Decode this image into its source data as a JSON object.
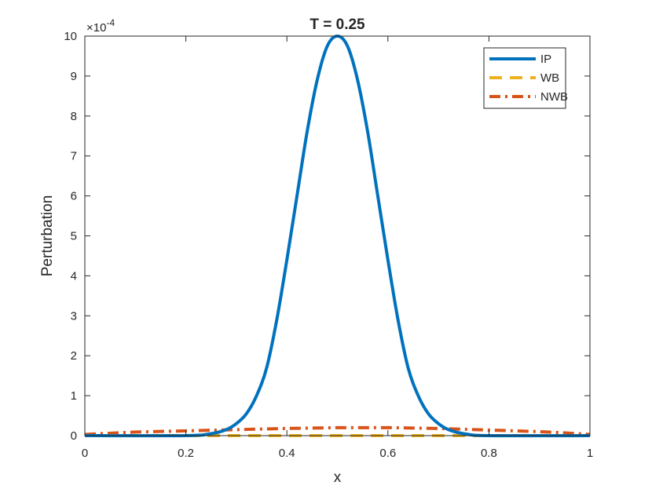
{
  "chart_data": {
    "type": "line",
    "title": "T = 0.25",
    "xlabel": "x",
    "ylabel": "Perturbation",
    "y_exponent_label": "×10",
    "y_exponent_power": "-4",
    "y_scale": 0.0001,
    "xlim": [
      0,
      1
    ],
    "ylim": [
      0,
      10
    ],
    "xticks": [
      0,
      0.2,
      0.4,
      0.6,
      0.8,
      1
    ],
    "xtick_labels": [
      "0",
      "0.2",
      "0.4",
      "0.6",
      "0.8",
      "1"
    ],
    "yticks": [
      0,
      1,
      2,
      3,
      4,
      5,
      6,
      7,
      8,
      9,
      10
    ],
    "ytick_labels": [
      "0",
      "1",
      "2",
      "3",
      "4",
      "5",
      "6",
      "7",
      "8",
      "9",
      "10"
    ],
    "grid": false,
    "legend_position": "top-right",
    "series": [
      {
        "name": "IP",
        "color": "#0072BD",
        "style": "solid",
        "x": [
          0,
          0.2,
          0.25,
          0.28,
          0.3,
          0.32,
          0.34,
          0.36,
          0.38,
          0.4,
          0.42,
          0.44,
          0.46,
          0.48,
          0.5,
          0.52,
          0.54,
          0.56,
          0.58,
          0.6,
          0.62,
          0.64,
          0.66,
          0.68,
          0.7,
          0.72,
          0.75,
          0.8,
          1
        ],
        "y": [
          0,
          0,
          0.05,
          0.15,
          0.3,
          0.55,
          1.0,
          1.7,
          2.9,
          4.4,
          6.0,
          7.6,
          8.9,
          9.75,
          10,
          9.75,
          8.9,
          7.6,
          6.0,
          4.4,
          2.9,
          1.7,
          1.0,
          0.55,
          0.3,
          0.15,
          0.05,
          0,
          0
        ]
      },
      {
        "name": "WB",
        "color": "#EDB120",
        "style": "dashed",
        "x": [
          0,
          0.1,
          0.2,
          0.3,
          0.4,
          0.5,
          0.6,
          0.7,
          0.8,
          0.9,
          1
        ],
        "y": [
          0,
          0,
          0,
          0,
          0,
          0,
          0,
          0,
          0,
          0,
          0
        ]
      },
      {
        "name": "NWB",
        "color": "#D95319",
        "style": "dashdot",
        "x": [
          0,
          0.05,
          0.1,
          0.2,
          0.3,
          0.4,
          0.5,
          0.6,
          0.7,
          0.8,
          0.9,
          0.95,
          1
        ],
        "y": [
          0.03,
          0.06,
          0.09,
          0.12,
          0.15,
          0.18,
          0.2,
          0.2,
          0.18,
          0.14,
          0.1,
          0.07,
          0.03
        ]
      }
    ]
  }
}
